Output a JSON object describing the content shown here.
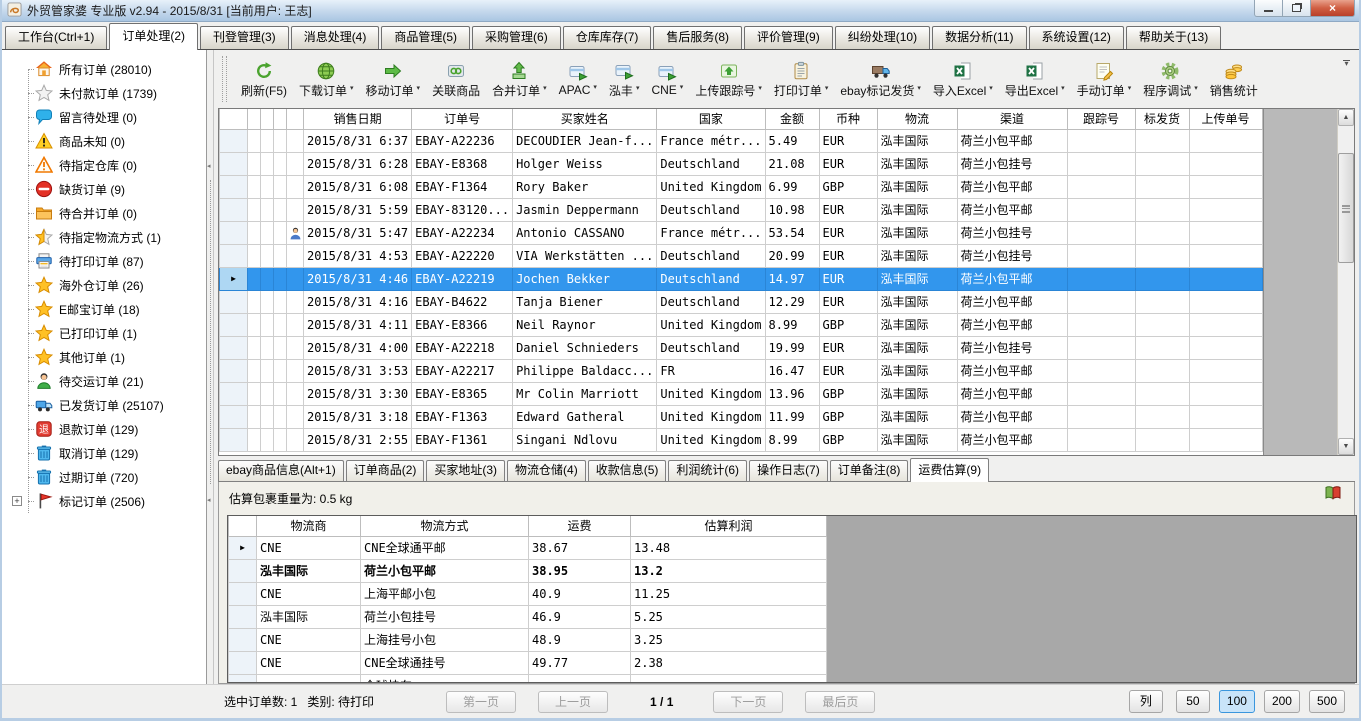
{
  "window": {
    "title": "外贸管家婆 专业版 v2.94 - 2015/8/31 [当前用户: 王志]"
  },
  "colors": {
    "selection_blue": "#3296ed",
    "active_tab_bg": "#ffffff",
    "page_size_highlight": "#c9e4f9",
    "close_button_red": "#c24836"
  },
  "menu_tabs": [
    {
      "label": "工作台(Ctrl+1)",
      "active": false
    },
    {
      "label": "订单处理(2)",
      "active": true
    },
    {
      "label": "刊登管理(3)",
      "active": false
    },
    {
      "label": "消息处理(4)",
      "active": false
    },
    {
      "label": "商品管理(5)",
      "active": false
    },
    {
      "label": "采购管理(6)",
      "active": false
    },
    {
      "label": "仓库库存(7)",
      "active": false
    },
    {
      "label": "售后服务(8)",
      "active": false
    },
    {
      "label": "评价管理(9)",
      "active": false
    },
    {
      "label": "纠纷处理(10)",
      "active": false
    },
    {
      "label": "数据分析(11)",
      "active": false
    },
    {
      "label": "系统设置(12)",
      "active": false
    },
    {
      "label": "帮助关于(13)",
      "active": false
    }
  ],
  "sidebar": {
    "items": [
      {
        "icon": "home-icon",
        "label": "所有订单 (28010)"
      },
      {
        "icon": "star-gray-icon",
        "label": "未付款订单 (1739)"
      },
      {
        "icon": "comment-icon",
        "label": "留言待处理 (0)"
      },
      {
        "icon": "warning-icon",
        "label": "商品未知 (0)"
      },
      {
        "icon": "warning-outline-icon",
        "label": "待指定仓库 (0)"
      },
      {
        "icon": "no-entry-icon",
        "label": "缺货订单 (9)"
      },
      {
        "icon": "folder-icon",
        "label": "待合并订单 (0)"
      },
      {
        "icon": "star-half-icon",
        "label": "待指定物流方式 (1)"
      },
      {
        "icon": "printer-icon",
        "label": "待打印订单 (87)"
      },
      {
        "icon": "star-icon",
        "label": "海外仓订单 (26)"
      },
      {
        "icon": "star-icon",
        "label": "E邮宝订单 (18)"
      },
      {
        "icon": "star-icon",
        "label": "已打印订单 (1)"
      },
      {
        "icon": "star-icon",
        "label": "其他订单 (1)"
      },
      {
        "icon": "person-icon",
        "label": "待交运订单 (21)"
      },
      {
        "icon": "truck-icon",
        "label": "已发货订单 (25107)"
      },
      {
        "icon": "refund-icon",
        "label": "退款订单 (129)"
      },
      {
        "icon": "trash-icon",
        "label": "取消订单 (129)"
      },
      {
        "icon": "trash-icon",
        "label": "过期订单 (720)"
      },
      {
        "icon": "flag-icon",
        "label": "标记订单 (2506)",
        "expander": "+"
      }
    ]
  },
  "toolbar": {
    "buttons": [
      {
        "icon": "refresh-icon",
        "label": "刷新(F5)",
        "dropdown": false
      },
      {
        "icon": "globe-icon",
        "label": "下载订单",
        "dropdown": true
      },
      {
        "icon": "arrow-right-icon",
        "label": "移动订单",
        "dropdown": true
      },
      {
        "icon": "link-icon",
        "label": "关联商品",
        "dropdown": false
      },
      {
        "icon": "merge-icon",
        "label": "合并订单",
        "dropdown": true
      },
      {
        "icon": "card-icon",
        "label": "APAC",
        "dropdown": true
      },
      {
        "icon": "card-icon",
        "label": "泓丰",
        "dropdown": true
      },
      {
        "icon": "card-icon",
        "label": "CNE",
        "dropdown": true
      },
      {
        "icon": "upload-icon",
        "label": "上传跟踪号",
        "dropdown": true
      },
      {
        "icon": "clipboard-icon",
        "label": "打印订单",
        "dropdown": true
      },
      {
        "icon": "truck2-icon",
        "label": "ebay标记发货",
        "dropdown": true
      },
      {
        "icon": "excel-icon",
        "label": "导入Excel",
        "dropdown": true
      },
      {
        "icon": "excel-icon",
        "label": "导出Excel",
        "dropdown": true
      },
      {
        "icon": "note-icon",
        "label": "手动订单",
        "dropdown": true
      },
      {
        "icon": "gear-icon",
        "label": "程序调试",
        "dropdown": true
      },
      {
        "icon": "coins-icon",
        "label": "销售统计",
        "dropdown": false
      }
    ]
  },
  "orders_table": {
    "columns": [
      "销售日期",
      "订单号",
      "买家姓名",
      "国家",
      "金额",
      "币种",
      "物流",
      "渠道",
      "跟踪号",
      "标发货",
      "上传单号"
    ],
    "rows": [
      {
        "cells": [
          "2015/8/31 6:37",
          "EBAY-A22236",
          "DECOUDIER Jean-f...",
          "France métr...",
          "5.49",
          "EUR",
          "泓丰国际",
          "荷兰小包平邮",
          "",
          "",
          ""
        ]
      },
      {
        "cells": [
          "2015/8/31 6:28",
          "EBAY-E8368",
          "Holger Weiss",
          "Deutschland",
          "21.08",
          "EUR",
          "泓丰国际",
          "荷兰小包挂号",
          "",
          "",
          ""
        ]
      },
      {
        "cells": [
          "2015/8/31 6:08",
          "EBAY-F1364",
          "Rory Baker",
          "United Kingdom",
          "6.99",
          "GBP",
          "泓丰国际",
          "荷兰小包平邮",
          "",
          "",
          ""
        ]
      },
      {
        "cells": [
          "2015/8/31 5:59",
          "EBAY-83120...",
          "Jasmin Deppermann",
          "Deutschland",
          "10.98",
          "EUR",
          "泓丰国际",
          "荷兰小包平邮",
          "",
          "",
          ""
        ]
      },
      {
        "cells": [
          "2015/8/31 5:47",
          "EBAY-A22234",
          "Antonio CASSANO",
          "France métr...",
          "53.54",
          "EUR",
          "泓丰国际",
          "荷兰小包挂号",
          "",
          "",
          ""
        ],
        "person_icon": true
      },
      {
        "cells": [
          "2015/8/31 4:53",
          "EBAY-A22220",
          "VIA Werkstätten ...",
          "Deutschland",
          "20.99",
          "EUR",
          "泓丰国际",
          "荷兰小包挂号",
          "",
          "",
          ""
        ]
      },
      {
        "cells": [
          "2015/8/31 4:46",
          "EBAY-A22219",
          "Jochen Bekker",
          "Deutschland",
          "14.97",
          "EUR",
          "泓丰国际",
          "荷兰小包平邮",
          "",
          "",
          ""
        ],
        "selected": true
      },
      {
        "cells": [
          "2015/8/31 4:16",
          "EBAY-B4622",
          "Tanja Biener",
          "Deutschland",
          "12.29",
          "EUR",
          "泓丰国际",
          "荷兰小包平邮",
          "",
          "",
          ""
        ]
      },
      {
        "cells": [
          "2015/8/31 4:11",
          "EBAY-E8366",
          "Neil Raynor",
          "United Kingdom",
          "8.99",
          "GBP",
          "泓丰国际",
          "荷兰小包平邮",
          "",
          "",
          ""
        ]
      },
      {
        "cells": [
          "2015/8/31 4:00",
          "EBAY-A22218",
          "Daniel Schnieders",
          "Deutschland",
          "19.99",
          "EUR",
          "泓丰国际",
          "荷兰小包挂号",
          "",
          "",
          ""
        ]
      },
      {
        "cells": [
          "2015/8/31 3:53",
          "EBAY-A22217",
          "Philippe Baldacc...",
          "FR",
          "16.47",
          "EUR",
          "泓丰国际",
          "荷兰小包平邮",
          "",
          "",
          ""
        ]
      },
      {
        "cells": [
          "2015/8/31 3:30",
          "EBAY-E8365",
          "Mr Colin Marriott",
          "United Kingdom",
          "13.96",
          "GBP",
          "泓丰国际",
          "荷兰小包平邮",
          "",
          "",
          ""
        ]
      },
      {
        "cells": [
          "2015/8/31 3:18",
          "EBAY-F1363",
          "Edward Gatheral",
          "United Kingdom",
          "11.99",
          "GBP",
          "泓丰国际",
          "荷兰小包平邮",
          "",
          "",
          ""
        ]
      },
      {
        "cells": [
          "2015/8/31 2:55",
          "EBAY-F1361",
          "Singani Ndlovu",
          "United Kingdom",
          "8.99",
          "GBP",
          "泓丰国际",
          "荷兰小包平邮",
          "",
          "",
          ""
        ]
      }
    ]
  },
  "detail_tabs": [
    {
      "label": "ebay商品信息(Alt+1)",
      "active": false
    },
    {
      "label": "订单商品(2)",
      "active": false
    },
    {
      "label": "买家地址(3)",
      "active": false
    },
    {
      "label": "物流仓储(4)",
      "active": false
    },
    {
      "label": "收款信息(5)",
      "active": false
    },
    {
      "label": "利润统计(6)",
      "active": false
    },
    {
      "label": "操作日志(7)",
      "active": false
    },
    {
      "label": "订单备注(8)",
      "active": false
    },
    {
      "label": "运费估算(9)",
      "active": true
    }
  ],
  "freight": {
    "weight_label": "估算包裹重量为: 0.5 kg",
    "columns": [
      "物流商",
      "物流方式",
      "运费",
      "估算利润"
    ],
    "rows": [
      {
        "cells": [
          "CNE",
          "CNE全球通平邮",
          "38.67",
          "13.48"
        ],
        "arrow": true
      },
      {
        "cells": [
          "泓丰国际",
          "荷兰小包平邮",
          "38.95",
          "13.2"
        ],
        "bold": true
      },
      {
        "cells": [
          "CNE",
          "上海平邮小包",
          "40.9",
          "11.25"
        ]
      },
      {
        "cells": [
          "泓丰国际",
          "荷兰小包挂号",
          "46.9",
          "5.25"
        ]
      },
      {
        "cells": [
          "CNE",
          "上海挂号小包",
          "48.9",
          "3.25"
        ]
      },
      {
        "cells": [
          "CNE",
          "CNE全球通挂号",
          "49.77",
          "2.38"
        ]
      },
      {
        "cells": [
          "",
          "全球快车",
          "",
          ""
        ],
        "partial": true
      }
    ]
  },
  "status_bar": {
    "selection_text": "选中订单数: 1",
    "category_text": "类别: 待打印",
    "pager": {
      "first": "第一页",
      "prev": "上一页",
      "indicator": "1 / 1",
      "next": "下一页",
      "last": "最后页"
    },
    "page_size": {
      "col_label": "列",
      "options": [
        "50",
        "100",
        "200",
        "500"
      ],
      "active": "100"
    }
  }
}
